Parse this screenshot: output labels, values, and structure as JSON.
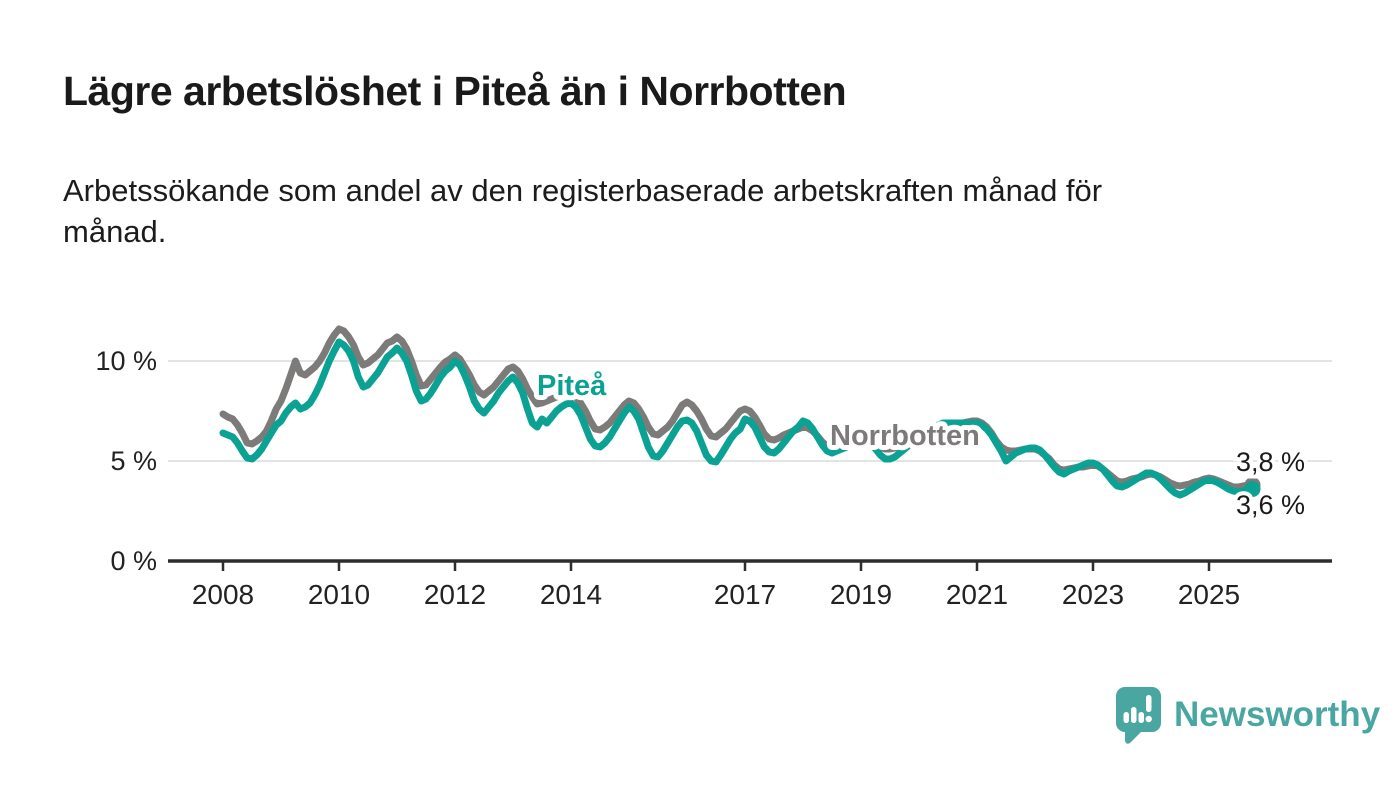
{
  "header": {
    "title": "Lägre arbetslöshet i Piteå än i Norrbotten",
    "subtitle_lines": [
      "Arbetssökande som andel av den registerbaserade arbetskraften månad för",
      "månad."
    ]
  },
  "chart_data": {
    "type": "line",
    "title": "Lägre arbetslöshet i Piteå än i Norrbotten",
    "subtitle": "Arbetssökande som andel av den registerbaserade arbetskraften månad för månad.",
    "unit": "%",
    "x_start_year": 2008,
    "x_step_months": 1,
    "x_end": "2025-10",
    "xlim": [
      2007.8,
      2026.2
    ],
    "ylim": [
      0,
      12.5
    ],
    "grid": "horizontal",
    "x_tick_years": [
      2008,
      2010,
      2012,
      2014,
      2017,
      2019,
      2021,
      2023,
      2025
    ],
    "y_ticks": [
      {
        "value": 0,
        "label": "0 %"
      },
      {
        "value": 5,
        "label": "5 %"
      },
      {
        "value": 10,
        "label": "10 %"
      }
    ],
    "series": [
      {
        "name": "Norrbotten",
        "color": "#7d7a7a",
        "end_label": "3,8 %",
        "last_value": 3.8,
        "values": [
          7.35,
          7.2,
          7.1,
          6.8,
          6.4,
          5.9,
          5.85,
          6.0,
          6.2,
          6.5,
          7.0,
          7.6,
          8.0,
          8.6,
          9.3,
          10.0,
          9.4,
          9.3,
          9.5,
          9.7,
          10.0,
          10.4,
          10.9,
          11.3,
          11.6,
          11.5,
          11.2,
          10.8,
          10.2,
          9.8,
          9.9,
          10.1,
          10.3,
          10.6,
          10.9,
          11.0,
          11.2,
          11.0,
          10.6,
          10.0,
          9.3,
          8.75,
          8.8,
          9.1,
          9.4,
          9.7,
          9.95,
          10.1,
          10.3,
          10.1,
          9.7,
          9.3,
          8.8,
          8.45,
          8.3,
          8.5,
          8.7,
          9.0,
          9.3,
          9.6,
          9.7,
          9.5,
          9.1,
          8.6,
          8.2,
          7.85,
          7.9,
          8.0,
          8.1,
          8.2,
          8.3,
          8.35,
          8.4,
          8.2,
          7.9,
          7.5,
          7.0,
          6.6,
          6.55,
          6.7,
          6.9,
          7.2,
          7.5,
          7.8,
          8.0,
          7.9,
          7.6,
          7.2,
          6.7,
          6.35,
          6.3,
          6.5,
          6.7,
          7.0,
          7.4,
          7.8,
          7.95,
          7.8,
          7.5,
          7.1,
          6.6,
          6.25,
          6.2,
          6.4,
          6.6,
          6.9,
          7.2,
          7.5,
          7.6,
          7.5,
          7.2,
          6.8,
          6.35,
          6.1,
          6.05,
          6.15,
          6.3,
          6.4,
          6.5,
          6.6,
          6.7,
          6.65,
          6.5,
          6.25,
          5.95,
          5.75,
          5.7,
          5.8,
          5.9,
          6.0,
          6.1,
          6.2,
          6.3,
          6.25,
          6.1,
          5.9,
          5.7,
          5.6,
          5.6,
          5.65,
          5.7,
          5.8,
          5.9,
          6.0,
          6.2,
          6.2,
          6.3,
          6.5,
          6.7,
          6.8,
          6.85,
          6.9,
          6.9,
          6.9,
          6.95,
          7.0,
          7.0,
          6.9,
          6.7,
          6.4,
          6.0,
          5.7,
          5.55,
          5.5,
          5.5,
          5.55,
          5.6,
          5.6,
          5.6,
          5.5,
          5.3,
          5.1,
          4.8,
          4.6,
          4.55,
          4.6,
          4.65,
          4.7,
          4.7,
          4.75,
          4.8,
          4.75,
          4.6,
          4.4,
          4.2,
          4.0,
          3.95,
          4.0,
          4.1,
          4.15,
          4.2,
          4.3,
          4.35,
          4.3,
          4.2,
          4.05,
          3.9,
          3.8,
          3.75,
          3.8,
          3.85,
          3.95,
          4.0,
          4.1,
          4.15,
          4.1,
          4.0,
          3.9,
          3.8,
          3.7,
          3.7,
          3.75,
          3.8,
          3.8
        ]
      },
      {
        "name": "Piteå",
        "color": "#0ba294",
        "end_label": "3,6 %",
        "last_value": 3.6,
        "values": [
          6.4,
          6.3,
          6.2,
          5.9,
          5.5,
          5.15,
          5.1,
          5.3,
          5.6,
          6.0,
          6.4,
          6.8,
          7.0,
          7.4,
          7.7,
          7.9,
          7.6,
          7.7,
          7.9,
          8.3,
          8.8,
          9.4,
          10.0,
          10.5,
          10.95,
          10.8,
          10.5,
          10.0,
          9.2,
          8.7,
          8.8,
          9.1,
          9.4,
          9.8,
          10.2,
          10.4,
          10.65,
          10.4,
          10.0,
          9.3,
          8.5,
          8.0,
          8.1,
          8.4,
          8.8,
          9.2,
          9.5,
          9.7,
          10.0,
          9.8,
          9.3,
          8.7,
          8.0,
          7.6,
          7.4,
          7.7,
          8.0,
          8.4,
          8.7,
          9.0,
          9.2,
          8.9,
          8.4,
          7.6,
          6.9,
          6.7,
          7.1,
          6.9,
          7.2,
          7.5,
          7.7,
          7.85,
          7.9,
          7.7,
          7.3,
          6.7,
          6.1,
          5.75,
          5.7,
          5.9,
          6.2,
          6.6,
          7.0,
          7.4,
          7.7,
          7.5,
          7.1,
          6.4,
          5.7,
          5.25,
          5.2,
          5.5,
          5.9,
          6.3,
          6.7,
          7.0,
          7.05,
          6.9,
          6.5,
          5.9,
          5.3,
          5.0,
          4.95,
          5.3,
          5.7,
          6.1,
          6.4,
          6.6,
          7.1,
          7.0,
          6.7,
          6.2,
          5.7,
          5.45,
          5.4,
          5.6,
          5.9,
          6.2,
          6.5,
          6.7,
          7.0,
          6.9,
          6.6,
          6.2,
          5.8,
          5.5,
          5.4,
          5.5,
          5.6,
          5.7,
          5.85,
          6.0,
          6.2,
          6.1,
          5.9,
          5.6,
          5.3,
          5.1,
          5.1,
          5.2,
          5.4,
          5.6,
          5.8,
          6.0,
          6.3,
          6.3,
          6.4,
          6.6,
          6.8,
          6.9,
          6.9,
          6.9,
          6.9,
          6.9,
          6.9,
          6.9,
          6.9,
          6.8,
          6.6,
          6.3,
          5.9,
          5.5,
          5.0,
          5.2,
          5.4,
          5.5,
          5.6,
          5.65,
          5.65,
          5.55,
          5.3,
          5.0,
          4.7,
          4.45,
          4.35,
          4.5,
          4.6,
          4.7,
          4.8,
          4.9,
          4.9,
          4.8,
          4.6,
          4.3,
          4.0,
          3.75,
          3.7,
          3.8,
          3.95,
          4.1,
          4.25,
          4.4,
          4.4,
          4.3,
          4.1,
          3.85,
          3.6,
          3.4,
          3.3,
          3.4,
          3.55,
          3.7,
          3.85,
          4.0,
          4.05,
          4.0,
          3.9,
          3.75,
          3.6,
          3.5,
          3.45,
          3.5,
          3.55,
          3.6
        ]
      }
    ],
    "series_labels": [
      {
        "text": "Piteå",
        "color": "#0ba294"
      },
      {
        "text": "Norrbotten",
        "color": "#7d7a7a"
      }
    ],
    "legend_position": "inline-labels"
  },
  "footer": {
    "brand": "Newsworthy",
    "logo_icon": "bar-chart-speech-bubble-icon"
  },
  "colors": {
    "accent_teal": "#0ba294",
    "series_gray": "#7d7a7a",
    "logo_teal": "#4aa6a0",
    "grid": "#e3e3e3",
    "axis": "#2d2d2d",
    "text": "#1a1a1a"
  }
}
